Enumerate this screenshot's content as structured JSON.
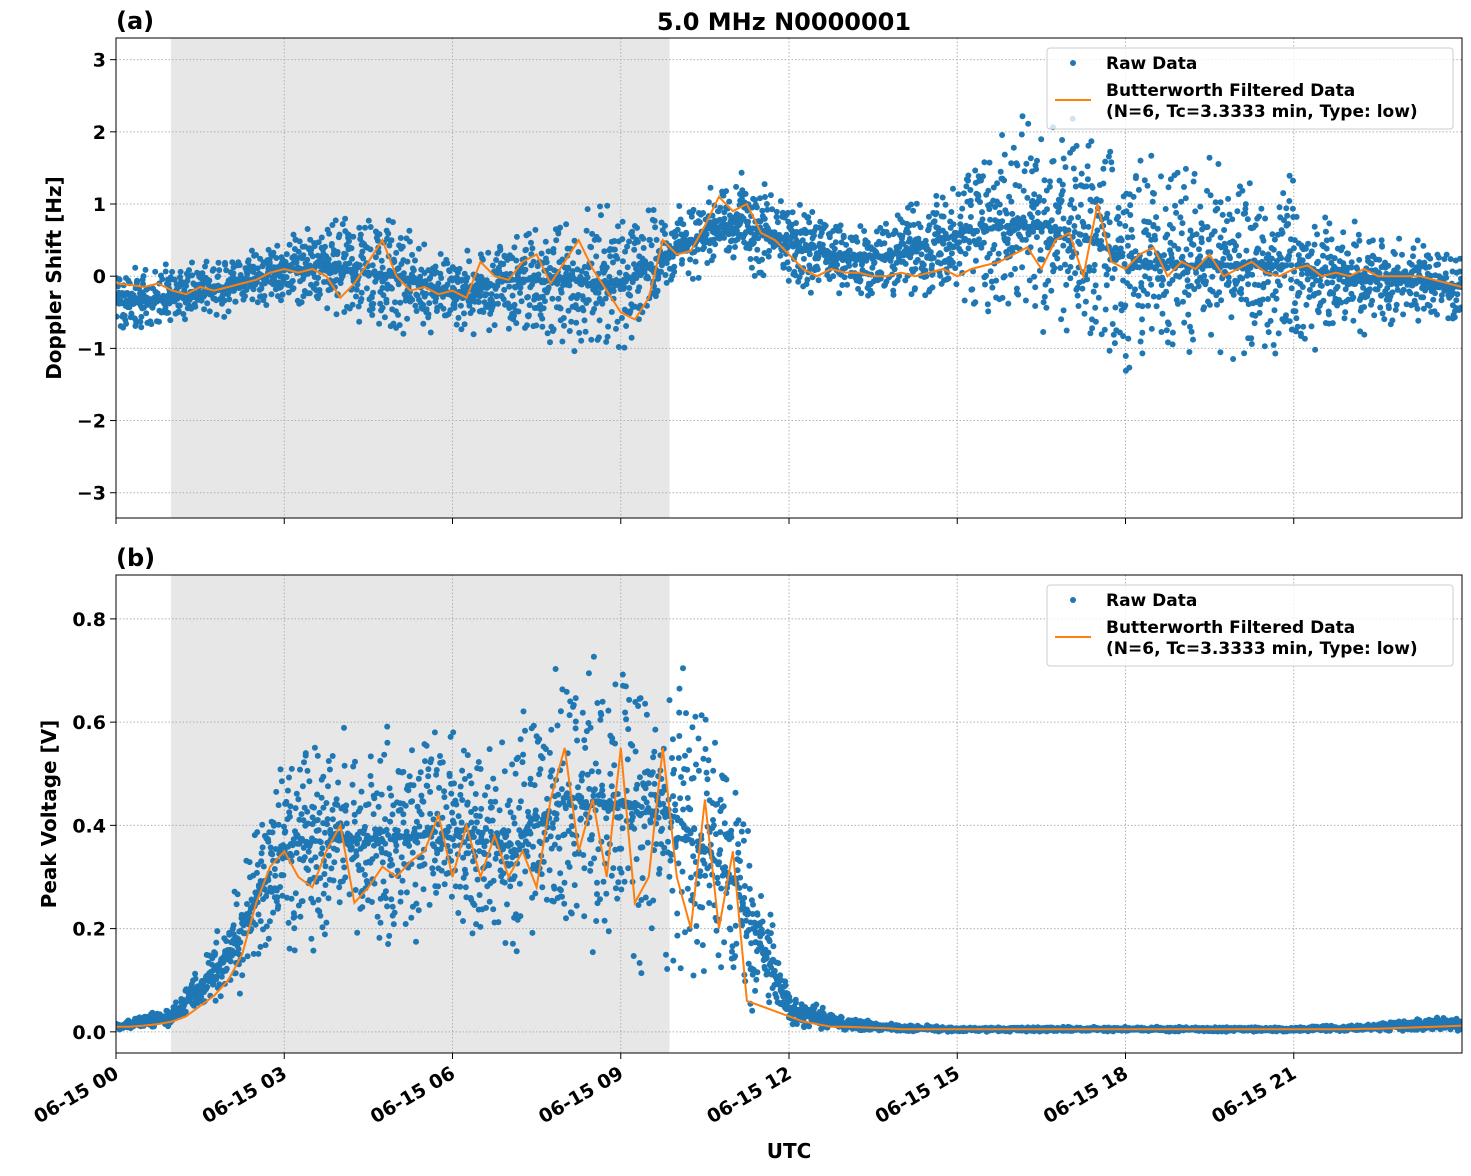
{
  "title": "5.0 MHz N0000001",
  "colors": {
    "raw": "#1f77b4",
    "filtered": "#ff7f0e",
    "shade": "#e7e7e7",
    "grid": "#b0b0b0"
  },
  "chart_data": [
    {
      "type": "scatter",
      "panel_label": "(a)",
      "ylabel": "Doppler Shift [Hz]",
      "xlabel": "",
      "xlim_hours": [
        0,
        24
      ],
      "ylim": [
        -3.35,
        3.3
      ],
      "yticks": [
        -3,
        -2,
        -1,
        0,
        1,
        2,
        3
      ],
      "ytick_labels": [
        "−3",
        "−2",
        "−1",
        "0",
        "1",
        "2",
        "3"
      ],
      "grid": true,
      "legend_position": "top-right",
      "shaded_interval_hours": [
        0.98,
        9.87
      ],
      "series": [
        {
          "name": "Raw Data",
          "kind": "points",
          "hours": [
            0,
            1,
            2,
            3,
            4,
            5,
            6,
            7,
            8,
            9,
            10,
            11,
            12,
            13,
            14,
            15,
            16,
            17,
            18,
            19,
            20,
            21,
            22,
            23,
            24
          ],
          "low": [
            -0.9,
            -0.8,
            -0.6,
            -0.4,
            -0.7,
            -1.0,
            -0.8,
            -0.9,
            -1.2,
            -1.2,
            -0.2,
            0.0,
            -0.2,
            -0.3,
            -0.4,
            -0.6,
            -0.8,
            -1.2,
            -1.5,
            -1.5,
            -1.3,
            -1.2,
            -0.9,
            -0.7,
            -0.7
          ],
          "high": [
            0.2,
            0.2,
            0.3,
            0.6,
            0.9,
            1.0,
            0.3,
            0.8,
            1.1,
            1.0,
            1.0,
            1.5,
            1.2,
            0.8,
            1.0,
            1.8,
            2.2,
            2.5,
            2.0,
            1.8,
            1.6,
            1.5,
            0.9,
            0.6,
            0.4
          ]
        },
        {
          "name": "Butterworth Filtered Data\n(N=6, Tc=3.3333 min, Type: low)",
          "kind": "line",
          "step_hours": 0.25,
          "values": [
            -0.1,
            -0.12,
            -0.15,
            -0.1,
            -0.2,
            -0.25,
            -0.15,
            -0.2,
            -0.15,
            -0.1,
            -0.05,
            0.05,
            0.1,
            0.05,
            0.1,
            0.0,
            -0.3,
            -0.1,
            0.2,
            0.5,
            0.0,
            -0.2,
            -0.15,
            -0.25,
            -0.2,
            -0.3,
            0.2,
            0.0,
            -0.05,
            0.2,
            0.3,
            -0.1,
            0.2,
            0.5,
            0.1,
            -0.2,
            -0.5,
            -0.6,
            -0.3,
            0.5,
            0.3,
            0.35,
            0.7,
            1.1,
            0.9,
            1.0,
            0.6,
            0.5,
            0.3,
            0.1,
            0.0,
            0.1,
            0.05,
            0.05,
            0.0,
            0.0,
            0.05,
            0.0,
            0.05,
            0.1,
            0.0,
            0.1,
            0.15,
            0.2,
            0.3,
            0.4,
            0.1,
            0.5,
            0.6,
            0.0,
            1.0,
            0.2,
            0.1,
            0.3,
            0.4,
            0.0,
            0.2,
            0.1,
            0.3,
            0.0,
            0.1,
            0.2,
            0.05,
            0.0,
            0.1,
            0.15,
            0.0,
            0.05,
            0.0,
            0.1,
            0.0,
            0.0,
            0.0,
            0.0,
            -0.05,
            -0.1,
            -0.15
          ]
        }
      ]
    },
    {
      "type": "scatter",
      "panel_label": "(b)",
      "ylabel": "Peak Voltage [V]",
      "xlabel": "UTC",
      "xlim_hours": [
        0,
        24
      ],
      "ylim": [
        -0.041,
        0.885
      ],
      "yticks": [
        0.0,
        0.2,
        0.4,
        0.6,
        0.8
      ],
      "ytick_labels": [
        "0.0",
        "0.2",
        "0.4",
        "0.6",
        "0.8"
      ],
      "xtick_hours": [
        0,
        3,
        6,
        9,
        12,
        15,
        18,
        21
      ],
      "xtick_labels": [
        "06-15 00",
        "06-15 03",
        "06-15 06",
        "06-15 09",
        "06-15 12",
        "06-15 15",
        "06-15 18",
        "06-15 21"
      ],
      "grid": true,
      "legend_position": "top-right",
      "shaded_interval_hours": [
        0.98,
        9.87
      ],
      "series": [
        {
          "name": "Raw Data",
          "kind": "points",
          "hours": [
            0,
            1,
            2,
            3,
            4,
            5,
            6,
            7,
            8,
            9,
            10,
            11,
            12,
            13,
            14,
            15,
            16,
            17,
            18,
            19,
            20,
            21,
            22,
            23,
            24
          ],
          "low": [
            0,
            0.01,
            0.05,
            0.12,
            0.15,
            0.15,
            0.13,
            0.12,
            0.13,
            0.1,
            0.08,
            0.03,
            0.01,
            0,
            0,
            0,
            0,
            0,
            0,
            0,
            0,
            0,
            0,
            0,
            0
          ],
          "high": [
            0.02,
            0.05,
            0.25,
            0.6,
            0.6,
            0.6,
            0.65,
            0.6,
            0.78,
            0.78,
            0.75,
            0.55,
            0.08,
            0.03,
            0.015,
            0.01,
            0.01,
            0.01,
            0.01,
            0.01,
            0.01,
            0.01,
            0.015,
            0.025,
            0.03
          ]
        },
        {
          "name": "Butterworth Filtered Data\n(N=6, Tc=3.3333 min, Type: low)",
          "kind": "line",
          "step_hours": 0.25,
          "values": [
            0.01,
            0.01,
            0.012,
            0.015,
            0.02,
            0.03,
            0.05,
            0.07,
            0.1,
            0.15,
            0.25,
            0.32,
            0.35,
            0.3,
            0.28,
            0.35,
            0.4,
            0.25,
            0.28,
            0.32,
            0.3,
            0.33,
            0.35,
            0.42,
            0.3,
            0.4,
            0.3,
            0.38,
            0.3,
            0.35,
            0.28,
            0.45,
            0.55,
            0.35,
            0.45,
            0.3,
            0.55,
            0.25,
            0.3,
            0.55,
            0.3,
            0.2,
            0.45,
            0.2,
            0.35,
            0.06,
            0.05,
            0.04,
            0.03,
            0.02,
            0.015,
            0.01,
            0.01,
            0.009,
            0.008,
            0.007,
            0.005,
            0.005,
            0.005,
            0.005,
            0.005,
            0.005,
            0.005,
            0.005,
            0.005,
            0.005,
            0.005,
            0.005,
            0.005,
            0.005,
            0.005,
            0.005,
            0.005,
            0.005,
            0.005,
            0.005,
            0.005,
            0.005,
            0.005,
            0.005,
            0.005,
            0.005,
            0.005,
            0.005,
            0.005,
            0.005,
            0.005,
            0.005,
            0.005,
            0.006,
            0.006,
            0.007,
            0.008,
            0.009,
            0.01,
            0.011,
            0.012
          ]
        }
      ]
    }
  ]
}
